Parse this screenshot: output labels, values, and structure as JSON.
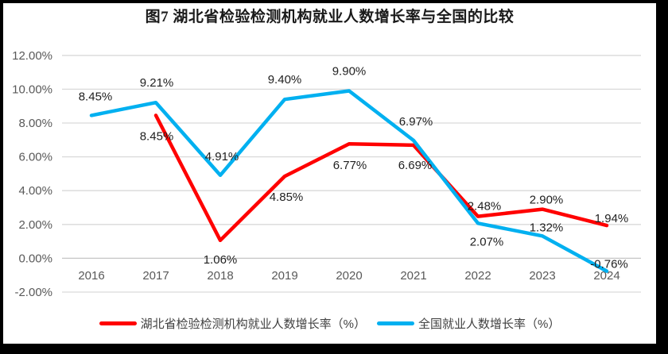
{
  "title": "图7 湖北省检验检测机构就业人数增长率与全国的比较",
  "chart_data": {
    "type": "line",
    "categories": [
      "2016",
      "2017",
      "2018",
      "2019",
      "2020",
      "2021",
      "2022",
      "2023",
      "2024"
    ],
    "series": [
      {
        "id": "hubei",
        "name": "湖北省检验检测机构就业人数增长率（%）",
        "color": "#FF0000",
        "values": [
          null,
          8.45,
          1.06,
          4.85,
          6.77,
          6.69,
          2.48,
          2.9,
          1.94
        ],
        "data_labels": [
          null,
          "8.45%",
          "1.06%",
          "4.85%",
          "6.77%",
          "6.69%",
          "2.48%",
          "2.90%",
          "1.94%"
        ]
      },
      {
        "id": "national",
        "name": "全国就业人数增长率（%）",
        "color": "#00B0F0",
        "values": [
          8.45,
          9.21,
          4.91,
          9.4,
          9.9,
          6.97,
          2.07,
          1.32,
          -0.76
        ],
        "data_labels": [
          "8.45%",
          "9.21%",
          "4.91%",
          "9.40%",
          "9.90%",
          "6.97%",
          "2.07%",
          "1.32%",
          "-0.76%"
        ]
      }
    ],
    "y_axis": {
      "tick_labels": [
        "12.00%",
        "10.00%",
        "8.00%",
        "6.00%",
        "4.00%",
        "2.00%",
        "0.00%",
        "-2.00%"
      ],
      "tick_values": [
        12,
        10,
        8,
        6,
        4,
        2,
        0,
        -2
      ],
      "min": -2,
      "max": 12
    },
    "grid": true,
    "legend_position": "bottom"
  },
  "legend": {
    "items": [
      {
        "label": "湖北省检验检测机构就业人数增长率（%）",
        "color": "#FF0000"
      },
      {
        "label": "全国就业人数增长率（%）",
        "color": "#00B0F0"
      }
    ]
  },
  "colors": {
    "frame": "#000000",
    "panel": "#ffffff",
    "gridline": "#D9D9D9",
    "zero_axis_line": "#C6C6C6",
    "tick_text": "#595959",
    "data_label_text": "#1f1f1f",
    "hubei_red": "#FF0000",
    "national_blue": "#00B0F0"
  }
}
